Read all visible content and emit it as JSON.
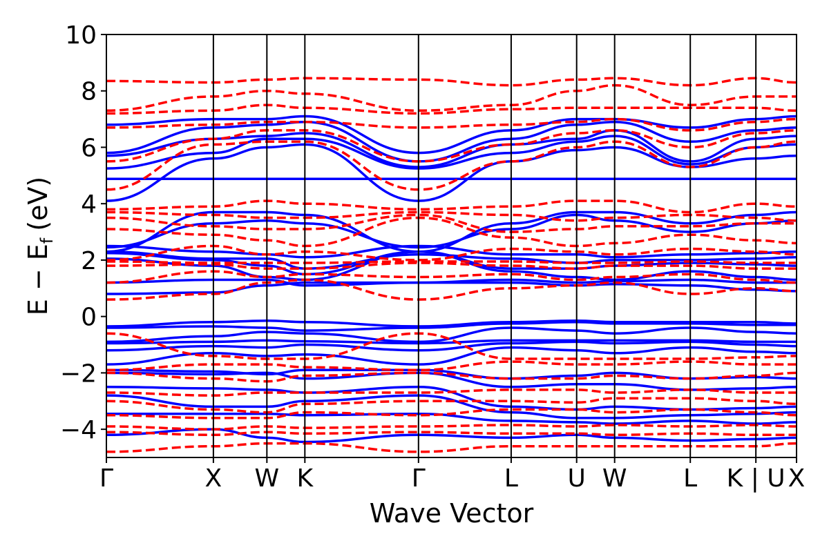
{
  "chart_data": {
    "type": "line",
    "xlabel": "Wave Vector",
    "ylabel_main": "E − E",
    "ylabel_sub": "f",
    "ylabel_unit": "(eV)",
    "ylim": [
      -5,
      10
    ],
    "yticks": [
      -4,
      -2,
      0,
      2,
      4,
      6,
      8,
      10
    ],
    "ytick_labels": [
      "−4",
      "−2",
      "0",
      "2",
      "4",
      "6",
      "8",
      "10"
    ],
    "xlim": [
      0,
      6.45
    ],
    "kpoints": [
      {
        "label": "Γ",
        "x": 0.0
      },
      {
        "label": "X",
        "x": 1.0
      },
      {
        "label": "W",
        "x": 1.5
      },
      {
        "label": "K",
        "x": 1.855
      },
      {
        "label": "Γ",
        "x": 2.917
      },
      {
        "label": "L",
        "x": 3.783
      },
      {
        "label": "U",
        "x": 4.395
      },
      {
        "label": "W",
        "x": 4.75
      },
      {
        "label": "L",
        "x": 5.457
      },
      {
        "label": "K | U",
        "x": 6.07
      },
      {
        "label": "X",
        "x": 6.45
      }
    ],
    "grid": false,
    "legend": "none",
    "series": [
      {
        "style": "solid",
        "color": "#0000ff",
        "bands": [
          [
            -4.2,
            -4.0,
            -4.3,
            -4.45,
            -4.2,
            -4.3,
            -4.2,
            -4.3,
            -4.4,
            -4.35,
            -4.3
          ],
          [
            -3.45,
            -3.45,
            -3.45,
            -3.5,
            -3.45,
            -3.7,
            -3.75,
            -3.8,
            -3.7,
            -3.8,
            -3.75
          ],
          [
            -2.8,
            -3.2,
            -3.2,
            -3.0,
            -2.8,
            -3.4,
            -3.6,
            -3.6,
            -3.5,
            -3.45,
            -3.4
          ],
          [
            -2.5,
            -2.55,
            -2.6,
            -2.7,
            -2.5,
            -3.2,
            -3.3,
            -3.2,
            -3.3,
            -3.25,
            -3.2
          ],
          [
            -2.0,
            -2.05,
            -2.0,
            -2.2,
            -2.0,
            -2.5,
            -2.4,
            -2.4,
            -2.6,
            -2.55,
            -2.5
          ],
          [
            -1.9,
            -1.95,
            -2.05,
            -1.9,
            -1.9,
            -2.2,
            -2.1,
            -2.0,
            -2.2,
            -2.15,
            -2.2
          ],
          [
            -1.7,
            -1.3,
            -1.4,
            -1.35,
            -1.7,
            -1.1,
            -1.2,
            -1.3,
            -1.1,
            -1.25,
            -1.3
          ],
          [
            -1.2,
            -1.05,
            -1.1,
            -1.0,
            -1.2,
            -0.95,
            -0.9,
            -0.95,
            -0.9,
            -1.0,
            -1.05
          ],
          [
            -0.95,
            -0.9,
            -0.85,
            -0.88,
            -0.95,
            -0.85,
            -0.85,
            -0.85,
            -0.85,
            -0.9,
            -0.9
          ],
          [
            -0.9,
            -0.7,
            -0.55,
            -0.6,
            -0.9,
            -0.4,
            -0.5,
            -0.6,
            -0.4,
            -0.55,
            -0.6
          ],
          [
            -0.4,
            -0.35,
            -0.4,
            -0.5,
            -0.4,
            -0.25,
            -0.2,
            -0.25,
            -0.25,
            -0.3,
            -0.3
          ],
          [
            -0.35,
            -0.2,
            -0.15,
            -0.2,
            -0.35,
            -0.2,
            -0.15,
            -0.2,
            -0.2,
            -0.2,
            -0.25
          ],
          [
            0.8,
            0.85,
            1.1,
            1.2,
            1.2,
            1.2,
            1.1,
            1.15,
            1.1,
            0.95,
            0.9
          ],
          [
            1.2,
            1.3,
            1.3,
            1.1,
            1.2,
            1.3,
            1.2,
            1.25,
            1.3,
            1.2,
            1.2
          ],
          [
            2.05,
            1.8,
            1.4,
            1.3,
            2.3,
            1.6,
            1.4,
            1.3,
            1.6,
            1.4,
            1.3
          ],
          [
            2.25,
            2.0,
            1.8,
            1.5,
            2.3,
            1.7,
            1.7,
            1.8,
            1.9,
            1.85,
            1.8
          ],
          [
            2.3,
            2.05,
            2.05,
            1.7,
            2.2,
            2.05,
            1.9,
            2.0,
            2.0,
            2.05,
            2.1
          ],
          [
            2.5,
            2.3,
            2.2,
            2.1,
            2.5,
            2.2,
            2.2,
            2.1,
            2.2,
            2.25,
            2.3
          ],
          [
            2.45,
            3.3,
            3.4,
            3.3,
            2.45,
            3.1,
            3.6,
            3.4,
            3.0,
            3.3,
            3.4
          ],
          [
            2.3,
            3.7,
            3.7,
            3.6,
            2.3,
            3.3,
            3.7,
            3.7,
            3.3,
            3.6,
            3.7
          ],
          [
            4.1,
            5.6,
            6.0,
            6.1,
            4.1,
            5.5,
            5.9,
            6.0,
            5.3,
            5.6,
            5.7
          ],
          [
            4.88,
            4.88,
            4.88,
            4.88,
            4.88,
            4.88,
            4.88,
            4.88,
            4.88,
            4.88,
            4.88
          ],
          [
            5.25,
            5.8,
            6.3,
            6.3,
            5.25,
            5.8,
            6.2,
            6.4,
            5.4,
            6.0,
            6.1
          ],
          [
            5.7,
            6.3,
            6.4,
            6.5,
            5.3,
            6.1,
            6.3,
            6.6,
            5.5,
            6.3,
            6.4
          ],
          [
            5.8,
            6.7,
            6.8,
            6.9,
            5.5,
            6.3,
            6.8,
            6.9,
            6.2,
            6.6,
            6.7
          ],
          [
            6.8,
            7.0,
            7.0,
            7.1,
            5.8,
            6.6,
            7.0,
            7.0,
            6.7,
            7.0,
            7.1
          ]
        ]
      },
      {
        "style": "dashed",
        "color": "#ff0000",
        "bands": [
          [
            -4.8,
            -4.6,
            -4.5,
            -4.5,
            -4.8,
            -4.6,
            -4.6,
            -4.6,
            -4.6,
            -4.6,
            -4.5
          ],
          [
            -4.1,
            -4.2,
            -4.1,
            -4.15,
            -4.1,
            -4.15,
            -4.15,
            -4.2,
            -4.15,
            -4.2,
            -4.2
          ],
          [
            -3.9,
            -4.0,
            -3.9,
            -3.95,
            -3.9,
            -3.85,
            -3.9,
            -3.85,
            -3.9,
            -3.85,
            -3.9
          ],
          [
            -3.5,
            -3.6,
            -3.6,
            -3.4,
            -3.5,
            -3.3,
            -3.3,
            -3.4,
            -3.3,
            -3.4,
            -3.5
          ],
          [
            -3.0,
            -3.3,
            -3.4,
            -3.1,
            -3.0,
            -3.0,
            -3.05,
            -2.9,
            -2.9,
            -3.0,
            -3.1
          ],
          [
            -2.7,
            -2.8,
            -2.7,
            -2.7,
            -2.7,
            -2.6,
            -2.6,
            -2.7,
            -2.6,
            -2.7,
            -2.7
          ],
          [
            -2.0,
            -2.2,
            -2.3,
            -2.1,
            -2.0,
            -2.2,
            -2.2,
            -2.1,
            -2.2,
            -2.1,
            -2.0
          ],
          [
            -1.9,
            -1.7,
            -1.7,
            -1.8,
            -1.9,
            -1.6,
            -1.7,
            -1.7,
            -1.6,
            -1.7,
            -1.7
          ],
          [
            -0.6,
            -1.4,
            -1.5,
            -1.5,
            -0.6,
            -1.5,
            -1.5,
            -1.5,
            -1.5,
            -1.45,
            -1.4
          ],
          [
            0.6,
            0.8,
            1.2,
            1.3,
            0.6,
            1.0,
            1.1,
            1.2,
            0.8,
            1.0,
            0.9
          ],
          [
            1.2,
            1.6,
            1.4,
            1.5,
            1.4,
            1.5,
            1.3,
            1.4,
            1.5,
            1.3,
            1.2
          ],
          [
            1.8,
            1.85,
            1.7,
            1.7,
            1.9,
            1.8,
            1.7,
            1.8,
            1.8,
            1.7,
            1.7
          ],
          [
            1.95,
            1.9,
            1.9,
            1.9,
            1.95,
            1.95,
            1.9,
            1.9,
            1.95,
            1.9,
            1.9
          ],
          [
            2.0,
            2.5,
            2.2,
            2.3,
            2.0,
            2.4,
            2.3,
            2.2,
            2.4,
            2.3,
            2.2
          ],
          [
            3.1,
            2.9,
            2.7,
            2.5,
            3.5,
            2.8,
            2.5,
            2.6,
            2.9,
            2.7,
            2.6
          ],
          [
            3.5,
            3.2,
            3.1,
            3.1,
            3.6,
            3.0,
            3.1,
            3.2,
            3.2,
            3.3,
            3.3
          ],
          [
            3.7,
            3.6,
            3.5,
            3.5,
            3.7,
            3.6,
            3.4,
            3.5,
            3.6,
            3.5,
            3.4
          ],
          [
            3.8,
            3.9,
            4.1,
            4.0,
            3.8,
            3.9,
            4.1,
            4.1,
            3.7,
            4.0,
            3.9
          ],
          [
            4.5,
            6.1,
            6.2,
            6.2,
            4.5,
            5.5,
            6.0,
            6.2,
            5.3,
            6.0,
            6.2
          ],
          [
            5.5,
            6.3,
            6.6,
            6.6,
            5.5,
            6.1,
            6.5,
            6.6,
            6.0,
            6.5,
            6.6
          ],
          [
            6.7,
            6.8,
            6.9,
            6.9,
            6.7,
            6.8,
            6.9,
            7.0,
            6.6,
            6.9,
            7.0
          ],
          [
            7.2,
            7.3,
            7.5,
            7.4,
            7.2,
            7.35,
            7.4,
            7.4,
            7.4,
            7.4,
            7.3
          ],
          [
            7.3,
            7.8,
            8.0,
            7.9,
            7.3,
            7.5,
            8.0,
            8.2,
            7.5,
            7.8,
            7.8
          ],
          [
            8.35,
            8.3,
            8.4,
            8.45,
            8.4,
            8.2,
            8.4,
            8.45,
            8.2,
            8.45,
            8.3
          ]
        ]
      }
    ]
  }
}
